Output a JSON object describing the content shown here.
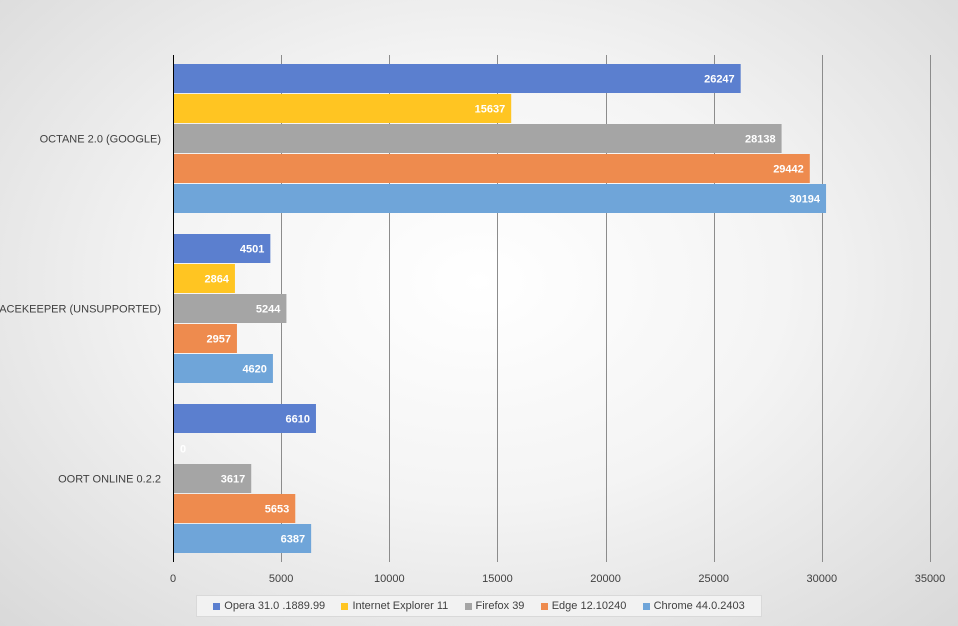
{
  "chart_data": {
    "type": "bar",
    "orientation": "horizontal",
    "title": "",
    "xlabel": "",
    "ylabel": "",
    "xlim": [
      0,
      35000
    ],
    "x_ticks": [
      0,
      5000,
      10000,
      15000,
      20000,
      25000,
      30000,
      35000
    ],
    "x_tick_labels": [
      "0",
      "5000",
      "10000",
      "15000",
      "20000",
      "25000",
      "30000",
      "35000"
    ],
    "grid": true,
    "legend_position": "bottom",
    "categories": [
      "OCTANE 2.0 (GOOGLE)",
      "PEACEKEEPER (UNSUPPORTED)",
      "OORT ONLINE 0.2.2"
    ],
    "series": [
      {
        "name": "Opera 31.0 .1889.99",
        "color": "#5b7fcf",
        "values": [
          26247,
          4501,
          6610
        ],
        "labels": [
          "26247",
          "4501",
          "6610"
        ]
      },
      {
        "name": "Internet Explorer 11",
        "color": "#ffc522",
        "values": [
          15637,
          2864,
          0
        ],
        "labels": [
          "15637",
          "2864",
          "0"
        ]
      },
      {
        "name": "Firefox 39",
        "color": "#a5a5a5",
        "values": [
          28138,
          5244,
          3617
        ],
        "labels": [
          "28138",
          "5244",
          "3617"
        ]
      },
      {
        "name": "Edge 12.10240",
        "color": "#ee8b4e",
        "values": [
          29442,
          2957,
          5653
        ],
        "labels": [
          "29442",
          "2957",
          "5653"
        ]
      },
      {
        "name": "Chrome 44.0.2403",
        "color": "#6fa5d9",
        "values": [
          30194,
          4620,
          6387
        ],
        "labels": [
          "30194",
          "4620",
          "6387"
        ]
      }
    ]
  }
}
